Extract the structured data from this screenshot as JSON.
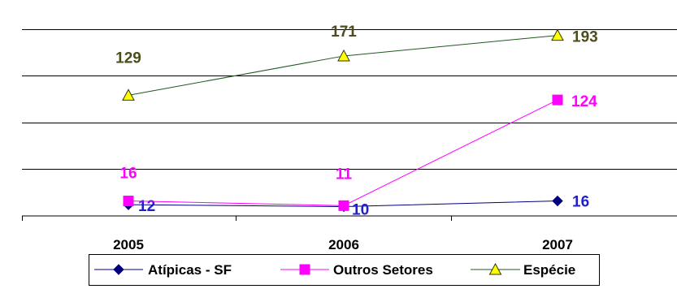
{
  "chart_data": {
    "type": "line",
    "x": [
      "2005",
      "2006",
      "2007"
    ],
    "ylim": [
      0,
      210
    ],
    "grid": true,
    "legend_position": "bottom",
    "series": [
      {
        "name": "Atípicas - SF",
        "values": [
          12,
          10,
          16
        ],
        "labels": [
          "12",
          "10",
          "16"
        ],
        "color": "#000080",
        "label_color": "#1f1fd0",
        "marker": "diamond"
      },
      {
        "name": "Outros Setores",
        "values": [
          16,
          11,
          124
        ],
        "labels": [
          "16",
          "11",
          "124"
        ],
        "color": "#ff00ff",
        "label_color": "#ff00ff",
        "marker": "square"
      },
      {
        "name": "Espécie",
        "values": [
          129,
          171,
          193
        ],
        "labels": [
          "129",
          "171",
          "193"
        ],
        "color": "#1e5a1e",
        "label_color": "#4d4d1a",
        "marker": "triangle"
      }
    ]
  }
}
